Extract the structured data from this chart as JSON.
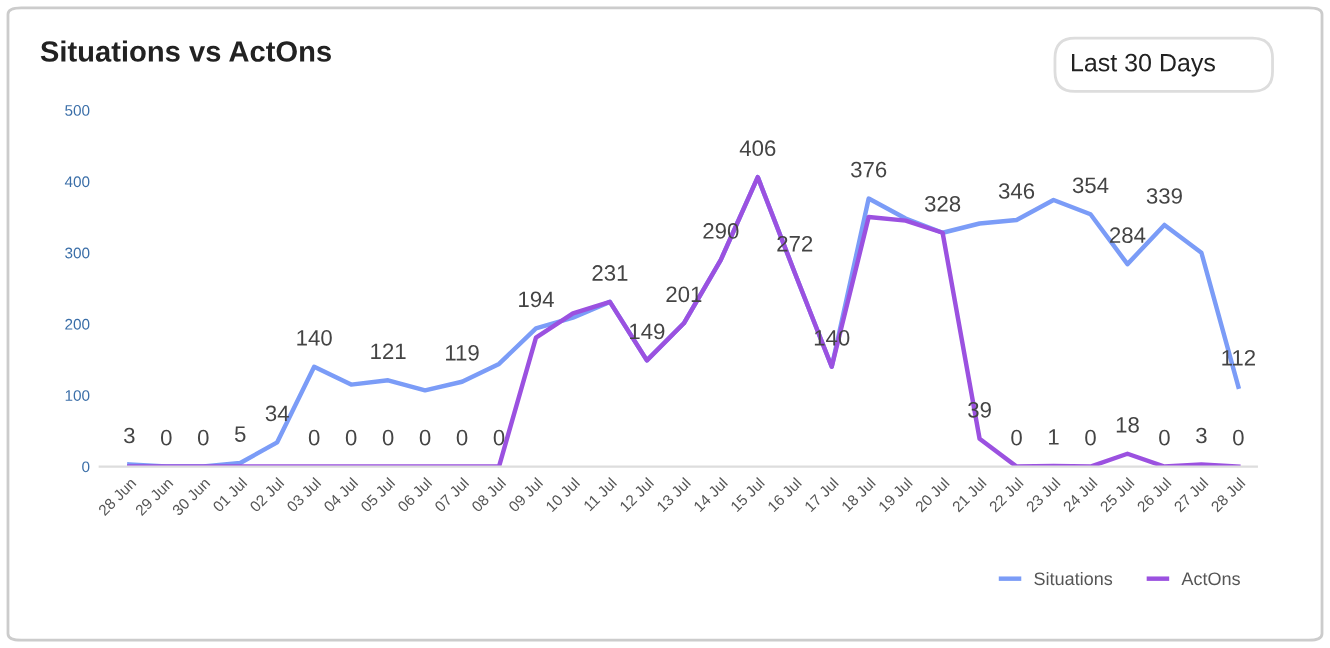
{
  "chart_data": {
    "type": "line",
    "title": "Situations vs ActOns",
    "annotations": [
      "Last 30 Days"
    ],
    "categories": [
      "28 Jun",
      "29 Jun",
      "30 Jun",
      "01 Jul",
      "02 Jul",
      "03 Jul",
      "04 Jul",
      "05 Jul",
      "06 Jul",
      "07 Jul",
      "08 Jul",
      "09 Jul",
      "10 Jul",
      "11 Jul",
      "12 Jul",
      "13 Jul",
      "14 Jul",
      "15 Jul",
      "16 Jul",
      "17 Jul",
      "18 Jul",
      "19 Jul",
      "20 Jul",
      "21 Jul",
      "22 Jul",
      "23 Jul",
      "24 Jul",
      "25 Jul",
      "26 Jul",
      "27 Jul",
      "28 Jul"
    ],
    "series": [
      {
        "name": "Situations",
        "color": "#7b9cf7",
        "values": [
          3,
          0,
          0,
          5,
          34,
          140,
          115,
          121,
          107,
          119,
          144,
          194,
          209,
          231,
          149,
          201,
          290,
          406,
          272,
          140,
          376,
          348,
          328,
          341,
          346,
          374,
          354,
          284,
          339,
          300,
          112
        ],
        "value_labels": [
          "3",
          "0",
          "0",
          "5",
          "34",
          "140",
          null,
          "121",
          null,
          "119",
          null,
          "194",
          null,
          "231",
          "149",
          "201",
          "290",
          "406",
          "272",
          "140",
          "376",
          null,
          "328",
          null,
          "346",
          null,
          "354",
          "284",
          "339",
          null,
          "112"
        ]
      },
      {
        "name": "ActOns",
        "color": "#9b51e0",
        "values": [
          0,
          0,
          0,
          0,
          0,
          0,
          0,
          0,
          0,
          0,
          0,
          181,
          215,
          231,
          149,
          201,
          290,
          406,
          272,
          140,
          350,
          345,
          328,
          39,
          0,
          1,
          0,
          18,
          0,
          3,
          0
        ],
        "value_labels": [
          null,
          null,
          null,
          null,
          null,
          "0",
          "0",
          "0",
          "0",
          "0",
          "0",
          null,
          null,
          null,
          null,
          null,
          null,
          null,
          null,
          null,
          null,
          null,
          null,
          "39",
          "0",
          "1",
          "0",
          "18",
          "0",
          "3",
          "0"
        ]
      }
    ],
    "ylim": [
      0,
      500
    ],
    "yticks": [
      0,
      100,
      200,
      300,
      400,
      500
    ],
    "grid": false,
    "legend": "bottom right",
    "marker": "none",
    "line_style": "solid"
  }
}
